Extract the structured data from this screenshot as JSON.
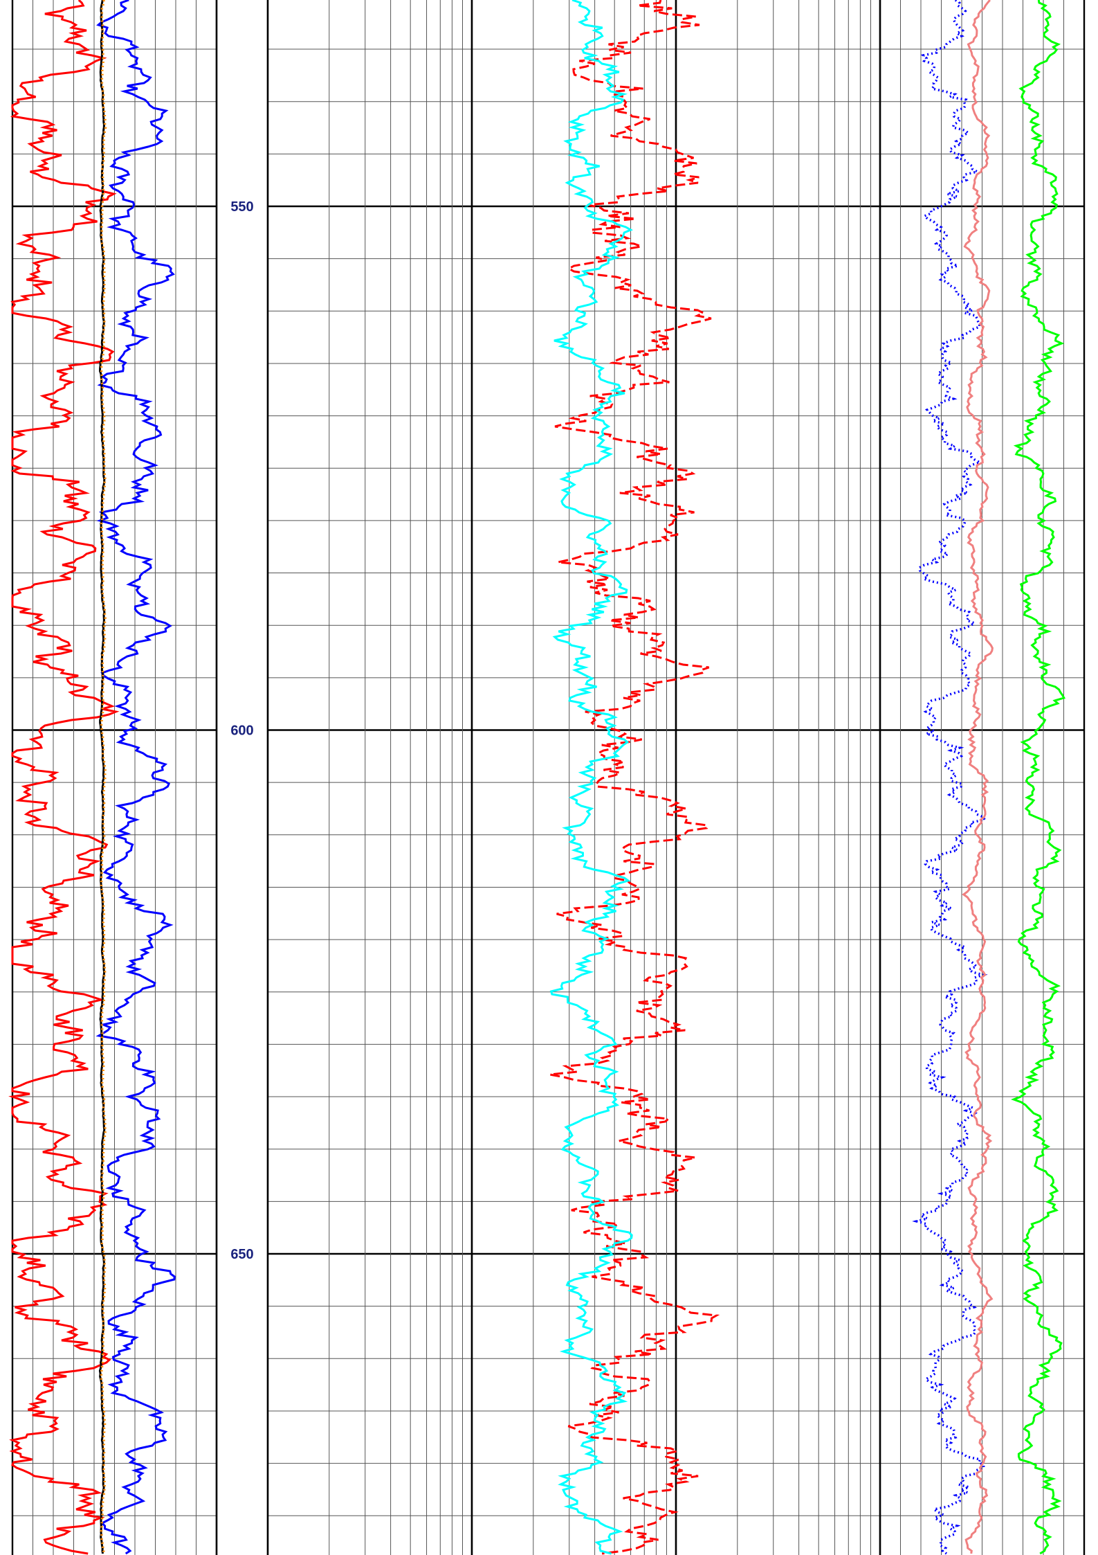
{
  "chart_data": {
    "type": "line",
    "title": "",
    "depth_axis": {
      "range": [
        500,
        680
      ],
      "major_step": 50,
      "minor_step": 5,
      "tick_labels": [
        "550",
        "600",
        "650"
      ]
    },
    "tracks": [
      {
        "id": "track1",
        "scale": "linear",
        "grid": true,
        "series": [
          {
            "color": "#ff0000",
            "style": "solid",
            "amplitude": 0.6,
            "center": 0.2
          },
          {
            "color": "#0000ff",
            "style": "solid",
            "amplitude": 0.35,
            "center": 0.6
          },
          {
            "color": "#000000",
            "style": "solid",
            "amplitude": 0.02,
            "center": 0.44
          },
          {
            "color": "#ff8c00",
            "style": "dotted",
            "amplitude": 0.02,
            "center": 0.445
          }
        ]
      },
      {
        "id": "track2",
        "scale": "log",
        "decades": 4,
        "grid": true,
        "series": [
          {
            "color": "#ff0000",
            "style": "dashed",
            "amplitude": 0.25,
            "center": 0.6
          },
          {
            "color": "#00ffff",
            "style": "solid",
            "amplitude": 0.12,
            "center": 0.53
          }
        ]
      },
      {
        "id": "track3",
        "scale": "linear",
        "grid": true,
        "series": [
          {
            "color": "#0000ff",
            "style": "dotted",
            "amplitude": 0.3,
            "center": 0.35
          },
          {
            "color": "#f08080",
            "style": "solid",
            "amplitude": 0.12,
            "center": 0.48
          },
          {
            "color": "#00ff00",
            "style": "solid",
            "amplitude": 0.22,
            "center": 0.78
          }
        ]
      }
    ],
    "colors": {
      "grid_major": "#000000",
      "grid_minor": "#555555",
      "depth_label": "#1a237e"
    }
  }
}
